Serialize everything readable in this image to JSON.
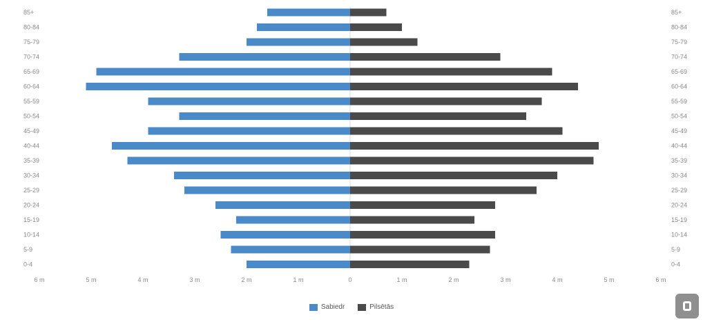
{
  "chart_data": {
    "type": "bar",
    "orientation": "horizontal",
    "layout": "population-pyramid",
    "categories": [
      "85+",
      "80-84",
      "75-79",
      "70-74",
      "65-69",
      "60-64",
      "55-59",
      "50-54",
      "45-49",
      "40-44",
      "35-39",
      "30-34",
      "25-29",
      "20-24",
      "15-19",
      "10-14",
      "5-9",
      "0-4"
    ],
    "series": [
      {
        "name": "Sabiedr",
        "color": "#4a8ac9",
        "side": "left",
        "values": [
          1.6,
          1.8,
          2.0,
          3.3,
          4.9,
          5.1,
          3.9,
          3.3,
          3.9,
          4.6,
          4.3,
          3.4,
          3.2,
          2.6,
          2.2,
          2.5,
          2.3,
          2.0
        ]
      },
      {
        "name": "Pilsētās",
        "color": "#4a4a4a",
        "side": "right",
        "values": [
          0.7,
          1.0,
          1.3,
          2.9,
          3.9,
          4.4,
          3.7,
          3.4,
          4.1,
          4.8,
          4.7,
          4.0,
          3.6,
          2.8,
          2.4,
          2.8,
          2.7,
          2.3
        ]
      }
    ],
    "xlim": [
      -6,
      6
    ],
    "x_ticks": [
      "6 m",
      "5 m",
      "4 m",
      "3 m",
      "2 m",
      "1 m",
      "0",
      "1 m",
      "2 m",
      "3 m",
      "4 m",
      "5 m",
      "6 m"
    ],
    "grid": false,
    "legend_position": "bottom-center"
  }
}
